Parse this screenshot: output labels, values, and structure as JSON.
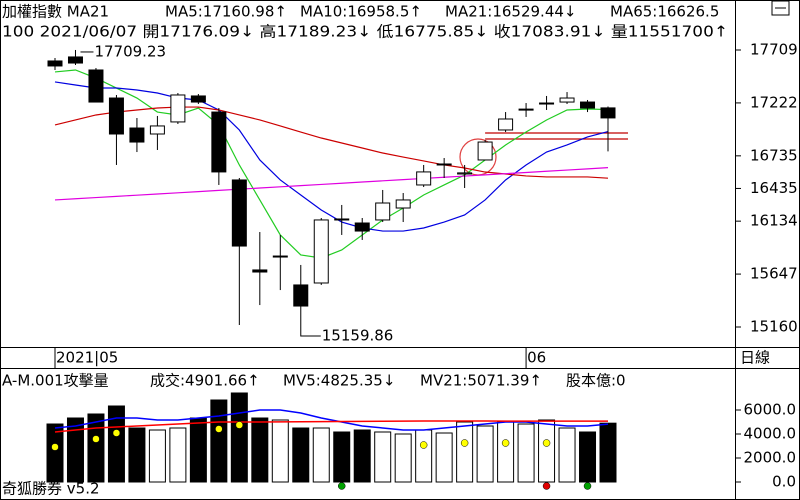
{
  "chart_data": [
    {
      "type": "candlestick",
      "header": [
        {
          "text": "加權指數 MA21",
          "color": "#000000"
        },
        {
          "text": "MA5:17160.98↑",
          "color": "#00a000"
        },
        {
          "text": "MA10:16958.5↑",
          "color": "#0000ff"
        },
        {
          "text": "MA21:16529.44↓",
          "color": "#ff0000"
        },
        {
          "text": "MA65:16626.5",
          "color": "#ff00ff"
        }
      ],
      "info": "100 2021/06/07 開17176.09↓ 高17189.23↓ 低16775.85↓ 收17083.91↓ 量11551700↑",
      "period": "日線",
      "categories": [
        "2021|05",
        null,
        null,
        null,
        null,
        null,
        null,
        null,
        null,
        null,
        null,
        null,
        null,
        null,
        null,
        null,
        null,
        null,
        null,
        null,
        null,
        null,
        null,
        "06",
        null,
        null,
        null,
        null
      ],
      "open": [
        17608,
        17645,
        17525,
        17267,
        16991,
        16936,
        17047,
        17286,
        17138,
        16513,
        15685,
        15813,
        15547,
        15565,
        16154,
        16117,
        16145,
        16255,
        16467,
        16651,
        16568,
        16697,
        16973,
        17156,
        17212,
        17230,
        17230,
        17176.09
      ],
      "high": [
        17635,
        17709.23,
        17543,
        17295,
        17083,
        17102,
        17313,
        17304,
        17175,
        16531,
        16034,
        16006,
        15731,
        16163,
        16283,
        16163,
        16421,
        16393,
        16651,
        16715,
        16651,
        16881,
        17138,
        17221,
        17286,
        17322,
        17249,
        17189.23
      ],
      "low": [
        17525,
        17571,
        17230,
        16651,
        16770,
        16789,
        17028,
        17212,
        16467,
        15178,
        15362,
        15500,
        15159.86,
        15547,
        16007,
        15961,
        16126,
        16126,
        16448,
        16531,
        16439,
        16697,
        16954,
        17093,
        17157,
        17212,
        17138,
        16775.85
      ],
      "close": [
        17562,
        17589,
        17230,
        16936,
        16862,
        17010,
        17295,
        17230,
        16587,
        15905,
        15666,
        15813,
        15353,
        16145,
        16145,
        16043,
        16301,
        16329,
        16587,
        16660,
        16578,
        16862,
        17074,
        17165,
        17221,
        17267,
        17175,
        17083.91
      ],
      "up_color": "#ffffff",
      "down_color": "#000000",
      "series": [
        {
          "color": "#22cc22",
          "values": [
            17507,
            17525,
            17451,
            17359,
            17267,
            17138,
            17111,
            17175,
            17019,
            16651,
            16329,
            16007,
            15823,
            15795,
            15869,
            16007,
            16145,
            16255,
            16375,
            16467,
            16559,
            16697,
            16835,
            16954,
            17065,
            17157,
            17166,
            17160.98
          ]
        },
        {
          "color": "#0000e0",
          "values": [
            17415,
            17387,
            17359,
            17359,
            17341,
            17313,
            17267,
            17249,
            17157,
            16973,
            16697,
            16513,
            16375,
            16237,
            16126,
            16071,
            16043,
            16043,
            16071,
            16126,
            16191,
            16329,
            16513,
            16651,
            16770,
            16835,
            16909,
            16958.5
          ]
        },
        {
          "color": "#cc0000",
          "values": [
            17019,
            17065,
            17111,
            17138,
            17157,
            17175,
            17184,
            17184,
            17157,
            17111,
            17065,
            17010,
            16954,
            16899,
            16853,
            16807,
            16761,
            16724,
            16688,
            16651,
            16623,
            16586,
            16568,
            16550,
            16541,
            16541,
            16541,
            16529.44
          ]
        },
        {
          "color": "#e000e0",
          "values": [
            16329,
            16340,
            16351,
            16362,
            16373,
            16384,
            16395,
            16406,
            16417,
            16428,
            16439,
            16450,
            16461,
            16472,
            16483,
            16494,
            16505,
            16516,
            16527,
            16538,
            16549,
            16560,
            16571,
            16582,
            16593,
            16604,
            16615,
            16626.5
          ]
        }
      ],
      "hlines": [
        {
          "value": 16945,
          "color": "#c00000"
        },
        {
          "value": 16890,
          "color": "#c00000"
        }
      ],
      "annotations": [
        "17709.23",
        "15159.86"
      ],
      "ylim": [
        14976,
        18169
      ],
      "yticks": [
        17709,
        17222,
        16735,
        16435,
        16134,
        15647,
        15160
      ]
    },
    {
      "type": "volume",
      "header": [
        {
          "text": "A-M.001攻擊量",
          "color": "#000000"
        },
        {
          "text": "成交:4901.66↑",
          "color": "#00a000"
        },
        {
          "text": "MV5:4825.35↓",
          "color": "#0000ff"
        },
        {
          "text": "MV21:5071.39↑",
          "color": "#ff0000"
        },
        {
          "text": "股本億:0",
          "color": "#ff00ff"
        }
      ],
      "footer": "奇狐勝券 v5.2",
      "values": [
        4833,
        5333,
        5667,
        6333,
        4500,
        4333,
        4500,
        5333,
        6833,
        7417,
        5333,
        5167,
        4500,
        4500,
        4167,
        4333,
        4167,
        4000,
        4333,
        4083,
        5000,
        4667,
        5000,
        4833,
        5167,
        4500,
        4167,
        4901.66
      ],
      "series": [
        {
          "color": "#0000ff",
          "values": [
            4500,
            4667,
            5000,
            5333,
            5333,
            5167,
            5167,
            5333,
            5500,
            5750,
            6000,
            6000,
            5750,
            5333,
            5000,
            4667,
            4500,
            4333,
            4333,
            4500,
            4667,
            4833,
            5000,
            5000,
            4833,
            4667,
            4667,
            4825.35
          ]
        },
        {
          "color": "#ff0000",
          "values": [
            4167,
            4333,
            4500,
            4583,
            4667,
            4750,
            4833,
            4917,
            5000,
            5000,
            5000,
            5010,
            5020,
            5030,
            5040,
            5050,
            5060,
            5070,
            5080,
            5083,
            5083,
            5080,
            5078,
            5076,
            5075,
            5074,
            5072,
            5071.39
          ]
        }
      ],
      "markers": [
        {
          "color": "#ffff00",
          "values": [
            2917,
            null,
            3583,
            4083,
            null,
            null,
            null,
            null,
            4417,
            4750,
            null,
            null,
            null,
            null,
            null,
            null,
            null,
            null,
            3083,
            null,
            3250,
            null,
            3250,
            null,
            3250,
            null,
            null,
            null
          ]
        },
        {
          "color": "#00a000",
          "values": [
            null,
            null,
            null,
            null,
            null,
            null,
            null,
            null,
            null,
            null,
            null,
            null,
            null,
            null,
            -333,
            null,
            null,
            null,
            null,
            null,
            null,
            null,
            null,
            null,
            null,
            null,
            -333,
            null
          ]
        },
        {
          "color": "#e00000",
          "values": [
            null,
            null,
            null,
            null,
            null,
            null,
            null,
            null,
            null,
            null,
            null,
            null,
            null,
            null,
            null,
            null,
            null,
            null,
            null,
            null,
            null,
            null,
            null,
            null,
            -333,
            null,
            null,
            null
          ]
        }
      ],
      "ylim": [
        -1500,
        9500
      ],
      "yticks": [
        {
          "value": 6000,
          "label": "6000.0"
        },
        {
          "value": 4000,
          "label": "4000.0"
        },
        {
          "value": 2000,
          "label": "2000.0"
        },
        {
          "value": 0,
          "label": "0.0"
        }
      ]
    }
  ]
}
